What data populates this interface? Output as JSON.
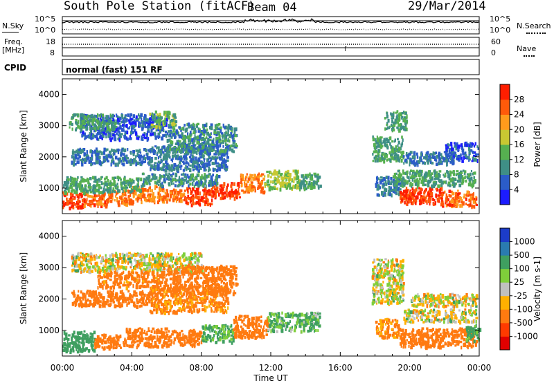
{
  "header": {
    "station": "South Pole Station (fitACF)",
    "beam": "Beam 04",
    "date": "29/Mar/2014"
  },
  "nsky": {
    "label": "N.Sky",
    "ticks": [
      "10^5",
      "10^0"
    ],
    "right_label": "N.Search",
    "right_ticks": [
      "10^5",
      "10^0"
    ]
  },
  "freq": {
    "label_line1": "Freq.",
    "label_line2": "[MHz]",
    "ticks": [
      "18",
      "8"
    ],
    "right_label": "Nave",
    "right_ticks": [
      "60",
      "0"
    ],
    "marker": "f"
  },
  "cpid": {
    "label": "CPID",
    "value": "normal (fast) 151 RF"
  },
  "time_axis": {
    "label": "Time UT",
    "ticks": [
      "00:00",
      "04:00",
      "08:00",
      "12:00",
      "16:00",
      "20:00",
      "00:00"
    ]
  },
  "chart_data": [
    {
      "type": "heatmap",
      "title": "",
      "xlabel": "Time UT",
      "ylabel": "Slant Range [km]",
      "xlim": [
        0,
        24
      ],
      "ylim": [
        180,
        4500
      ],
      "yticks": [
        "1000",
        "2000",
        "3000",
        "4000"
      ],
      "colorbar": {
        "label": "Power [dB]",
        "ticks": [
          "4",
          "8",
          "12",
          "16",
          "20",
          "24",
          "28"
        ],
        "colors": [
          "#1c1cff",
          "#2b5cc8",
          "#3f8f86",
          "#56b050",
          "#c8c832",
          "#ff9b1c",
          "#ff5a0a",
          "#ff1e00"
        ]
      },
      "blobs": [
        {
          "x": [
            0.0,
            1.2
          ],
          "y": [
            400,
            900
          ],
          "v": 28
        },
        {
          "x": [
            1.2,
            2.6
          ],
          "y": [
            450,
            900
          ],
          "v": 26
        },
        {
          "x": [
            2.6,
            4.0
          ],
          "y": [
            500,
            950
          ],
          "v": 24
        },
        {
          "x": [
            4.0,
            5.8
          ],
          "y": [
            600,
            1100
          ],
          "v": 24
        },
        {
          "x": [
            5.8,
            7.0
          ],
          "y": [
            600,
            1000
          ],
          "v": 24
        },
        {
          "x": [
            7.0,
            8.6
          ],
          "y": [
            500,
            1050
          ],
          "v": 28
        },
        {
          "x": [
            8.6,
            10.2
          ],
          "y": [
            700,
            1200
          ],
          "v": 28
        },
        {
          "x": [
            10.2,
            11.6
          ],
          "y": [
            900,
            1500
          ],
          "v": 24
        },
        {
          "x": [
            11.6,
            13.6
          ],
          "y": [
            1000,
            1600
          ],
          "v": 16
        },
        {
          "x": [
            13.6,
            14.8
          ],
          "y": [
            1000,
            1500
          ],
          "v": 12
        },
        {
          "x": [
            0.0,
            4.5
          ],
          "y": [
            900,
            1400
          ],
          "v": 12
        },
        {
          "x": [
            4.5,
            9.0
          ],
          "y": [
            1100,
            1500
          ],
          "v": 10
        },
        {
          "x": [
            0.5,
            5.0
          ],
          "y": [
            1800,
            2300
          ],
          "v": 8
        },
        {
          "x": [
            5.0,
            9.5
          ],
          "y": [
            1600,
            2400
          ],
          "v": 8
        },
        {
          "x": [
            1.0,
            6.0
          ],
          "y": [
            2600,
            3400
          ],
          "v": 6
        },
        {
          "x": [
            6.0,
            10.0
          ],
          "y": [
            2200,
            3100
          ],
          "v": 10
        },
        {
          "x": [
            0.3,
            3.0
          ],
          "y": [
            2900,
            3400
          ],
          "v": 12
        },
        {
          "x": [
            5.0,
            6.5
          ],
          "y": [
            3000,
            3500
          ],
          "v": 14
        },
        {
          "x": [
            18.0,
            19.4
          ],
          "y": [
            800,
            1400
          ],
          "v": 8
        },
        {
          "x": [
            19.4,
            21.8
          ],
          "y": [
            500,
            1050
          ],
          "v": 28
        },
        {
          "x": [
            21.8,
            23.8
          ],
          "y": [
            450,
            950
          ],
          "v": 26
        },
        {
          "x": [
            19.0,
            23.8
          ],
          "y": [
            1100,
            1600
          ],
          "v": 12
        },
        {
          "x": [
            17.8,
            19.6
          ],
          "y": [
            1900,
            2700
          ],
          "v": 12
        },
        {
          "x": [
            19.6,
            22.5
          ],
          "y": [
            1800,
            2200
          ],
          "v": 8
        },
        {
          "x": [
            22.0,
            23.9
          ],
          "y": [
            1900,
            2500
          ],
          "v": 6
        },
        {
          "x": [
            18.5,
            19.8
          ],
          "y": [
            2900,
            3500
          ],
          "v": 12
        }
      ]
    },
    {
      "type": "heatmap",
      "title": "",
      "xlabel": "Time UT",
      "ylabel": "Slant Range [km]",
      "xlim": [
        0,
        24
      ],
      "ylim": [
        180,
        4500
      ],
      "yticks": [
        "1000",
        "2000",
        "3000",
        "4000"
      ],
      "colorbar": {
        "label": "Velocity [m s-1]",
        "ticks": [
          "1000",
          "500",
          "100",
          "25",
          "-25",
          "-100",
          "-500",
          "-1000"
        ],
        "colors": [
          "#1c3cc8",
          "#2a7bb0",
          "#3f9f60",
          "#7fcf3a",
          "#c0c0c0",
          "#ffb000",
          "#ff7a10",
          "#ff3a00",
          "#e00000"
        ]
      },
      "blobs": [
        {
          "x": [
            0.0,
            1.8
          ],
          "y": [
            350,
            1000
          ],
          "v": 250
        },
        {
          "x": [
            1.8,
            3.6
          ],
          "y": [
            450,
            900
          ],
          "v": -300
        },
        {
          "x": [
            3.6,
            6.0
          ],
          "y": [
            500,
            1100
          ],
          "v": -300
        },
        {
          "x": [
            6.0,
            8.0
          ],
          "y": [
            550,
            1050
          ],
          "v": -300
        },
        {
          "x": [
            8.0,
            9.8
          ],
          "y": [
            650,
            1200
          ],
          "v": 150
        },
        {
          "x": [
            9.8,
            11.8
          ],
          "y": [
            800,
            1500
          ],
          "v": -300
        },
        {
          "x": [
            11.8,
            14.8
          ],
          "y": [
            1000,
            1600
          ],
          "v": 120
        },
        {
          "x": [
            0.5,
            5.0
          ],
          "y": [
            1800,
            2300
          ],
          "v": -300
        },
        {
          "x": [
            5.0,
            9.5
          ],
          "y": [
            1600,
            2400
          ],
          "v": -150
        },
        {
          "x": [
            0.5,
            8.0
          ],
          "y": [
            2900,
            3500
          ],
          "v": 0
        },
        {
          "x": [
            2.0,
            6.0
          ],
          "y": [
            2400,
            2900
          ],
          "v": -200
        },
        {
          "x": [
            6.0,
            10.0
          ],
          "y": [
            2200,
            3100
          ],
          "v": -300
        },
        {
          "x": [
            19.4,
            23.8
          ],
          "y": [
            500,
            1100
          ],
          "v": -300
        },
        {
          "x": [
            18.0,
            19.4
          ],
          "y": [
            800,
            1400
          ],
          "v": -150
        },
        {
          "x": [
            17.8,
            19.6
          ],
          "y": [
            1900,
            3300
          ],
          "v": 0
        },
        {
          "x": [
            19.6,
            23.8
          ],
          "y": [
            1300,
            1700
          ],
          "v": 0
        },
        {
          "x": [
            20.0,
            23.8
          ],
          "y": [
            1800,
            2200
          ],
          "v": 0
        },
        {
          "x": [
            23.2,
            24.0
          ],
          "y": [
            700,
            1200
          ],
          "v": 150
        }
      ]
    }
  ]
}
